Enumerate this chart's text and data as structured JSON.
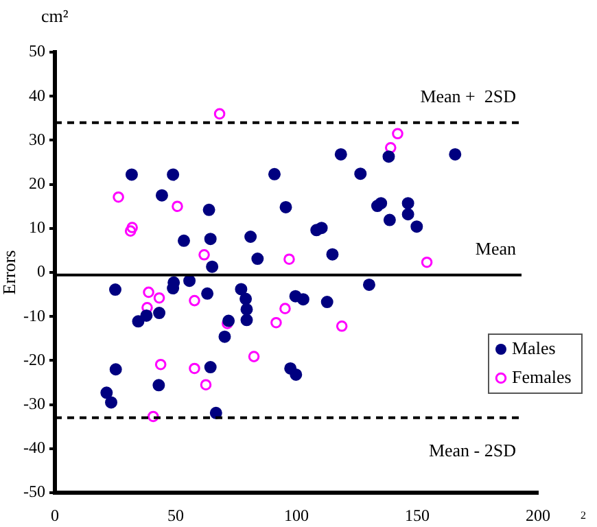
{
  "chart_data": {
    "type": "scatter",
    "ylabel": "Errors",
    "annotations": [
      "cm²",
      "2"
    ],
    "xlim": [
      0,
      200
    ],
    "xticks": [
      0,
      50,
      100,
      150,
      200
    ],
    "ylim": [
      -50,
      50
    ],
    "yticks": [
      -50,
      -40,
      -30,
      -20,
      -10,
      0,
      10,
      20,
      30,
      40,
      50
    ],
    "grid": false,
    "legend": "right",
    "marker": "circle",
    "ref_lines": [
      {
        "axis": "y",
        "value": 34,
        "label": "Mean +  2SD",
        "line_style": "dashed",
        "color": "#000000"
      },
      {
        "axis": "y",
        "value": -0.6,
        "label": "Mean",
        "line_style": "solid",
        "color": "#000000"
      },
      {
        "axis": "y",
        "value": -33,
        "label": "Mean - 2SD",
        "line_style": "dashed",
        "color": "#000000"
      }
    ],
    "series": [
      {
        "name": "Males",
        "color": "#000080",
        "x": [
          31.8,
          48.9,
          44.3,
          53.4,
          63.8,
          64.4,
          65.1,
          81,
          83.9,
          90.9,
          95.6,
          118.4,
          138.2,
          165.7,
          126.5,
          133.5,
          135,
          146.2,
          146.2,
          138.6,
          149.8,
          108.3,
          110.4,
          114.9,
          25,
          25.2,
          21.4,
          23.3,
          34.5,
          37.9,
          43.2,
          43,
          49.2,
          48.9,
          55.7,
          63.1,
          64.4,
          66.7,
          71.9,
          70.3,
          77.1,
          79,
          79.4,
          79.4,
          99.6,
          102.8,
          112.7,
          130.1,
          97.5,
          99.8
        ],
        "values": [
          22.2,
          22.2,
          17.5,
          7.2,
          14.2,
          7.6,
          1.3,
          8.1,
          3.1,
          22.3,
          14.8,
          26.8,
          26.3,
          26.8,
          22.4,
          15.1,
          15.7,
          15.7,
          13.2,
          11.9,
          10.4,
          9.6,
          10.1,
          4.1,
          -3.9,
          -22,
          -27.3,
          -29.5,
          -11.1,
          -9.8,
          -9.2,
          -25.6,
          -2.3,
          -3.6,
          -1.9,
          -4.8,
          -21.5,
          -31.9,
          -11,
          -14.6,
          -3.8,
          -6,
          -8.4,
          -10.8,
          -5.4,
          -6.1,
          -6.7,
          -2.8,
          -21.8,
          -23.2
        ]
      },
      {
        "name": "Females",
        "color": "#ff00ff",
        "x": [
          26.3,
          32,
          31.3,
          50.7,
          68.2,
          61.8,
          97,
          141.9,
          139,
          154,
          38.8,
          38.2,
          43.2,
          57.8,
          71.4,
          43.8,
          57.8,
          62.5,
          82.4,
          40.7,
          91.6,
          95.3,
          118.8
        ],
        "values": [
          17.1,
          10.2,
          9.4,
          15,
          36,
          4,
          3,
          31.5,
          28.3,
          2.3,
          -4.5,
          -8,
          -5.8,
          -6.4,
          -11.6,
          -20.9,
          -21.8,
          -25.5,
          -19.1,
          -32.7,
          -11.4,
          -8.2,
          -12.2
        ]
      }
    ]
  }
}
